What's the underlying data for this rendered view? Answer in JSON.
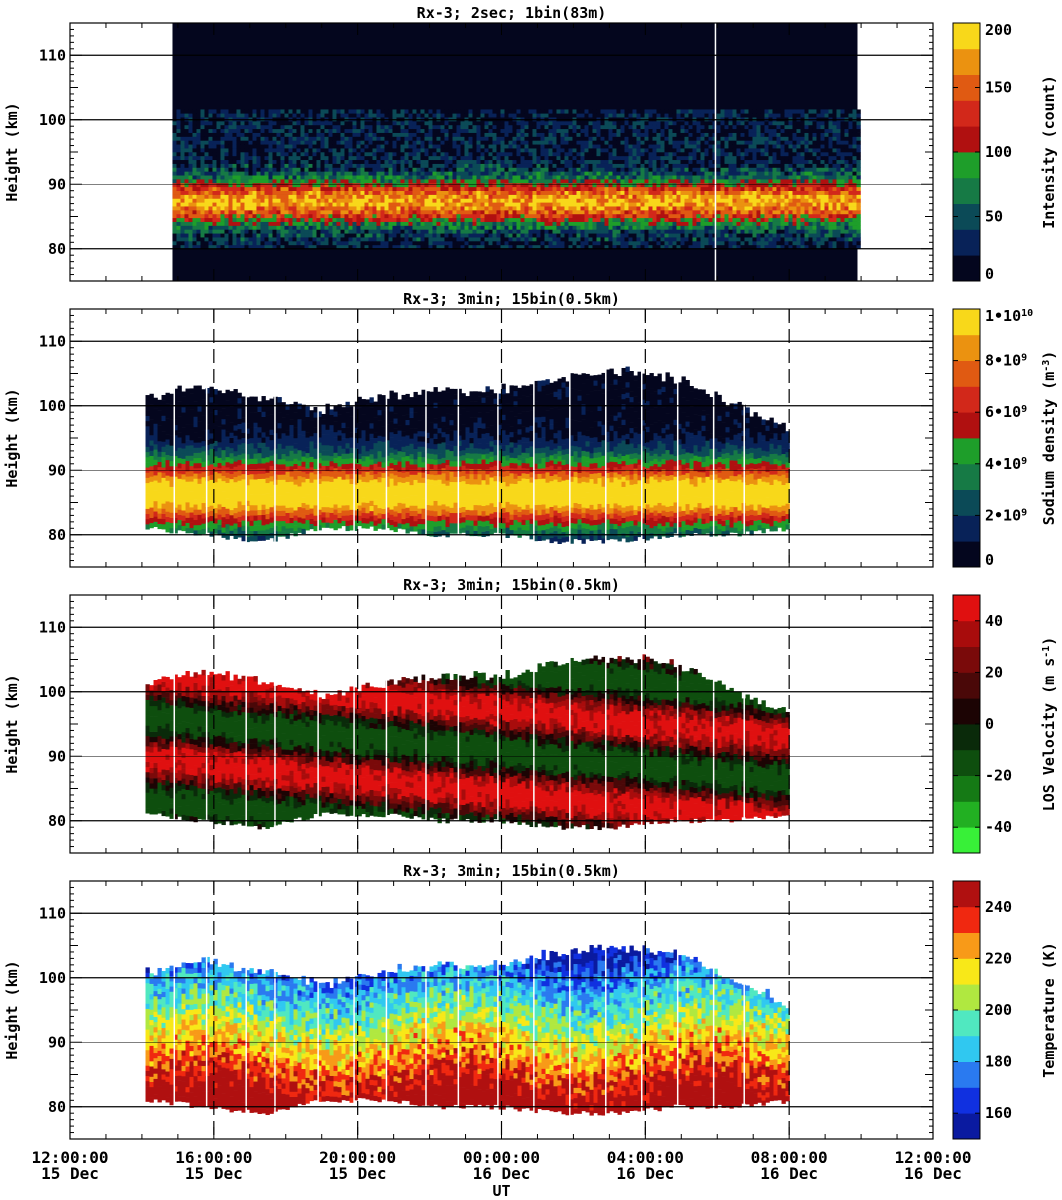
{
  "figure": {
    "xlabel": "UT",
    "ylabel": "Height (km)",
    "x_ticks": [
      {
        "time": "12:00:00",
        "day": "15 Dec"
      },
      {
        "time": "16:00:00",
        "day": "15 Dec"
      },
      {
        "time": "20:00:00",
        "day": "15 Dec"
      },
      {
        "time": "00:00:00",
        "day": "16 Dec"
      },
      {
        "time": "04:00:00",
        "day": "16 Dec"
      },
      {
        "time": "08:00:00",
        "day": "16 Dec"
      },
      {
        "time": "12:00:00",
        "day": "16 Dec"
      }
    ],
    "y_ticks": [
      "80",
      "90",
      "100",
      "110"
    ]
  },
  "chart_data": [
    {
      "type": "heatmap",
      "title": "Rx-3;  2sec; 1bin(83m)",
      "ylabel": "Height (km)",
      "xlim_hours_ut": [
        12,
        36
      ],
      "ylim": [
        75,
        115
      ],
      "colorbar_label": "Intensity (count)",
      "colorbar_ticks": [
        "0",
        "50",
        "100",
        "150",
        "200"
      ],
      "colorbar_range": [
        0,
        200
      ],
      "colors": [
        "#04061e",
        "#082258",
        "#0b4a57",
        "#167a45",
        "#1e9e2a",
        "#b01010",
        "#d2281a",
        "#e05a12",
        "#eb9210",
        "#f8d81a"
      ],
      "data_extent_hours_ut": [
        14.85,
        33.9
      ],
      "layer_peak_height_km": 87,
      "grid_verticals": false
    },
    {
      "type": "heatmap",
      "title": "Rx-3; 3min; 15bin(0.5km)",
      "ylabel": "Height (km)",
      "xlim_hours_ut": [
        12,
        36
      ],
      "ylim": [
        75,
        115
      ],
      "colorbar_label": "Sodium density (m-3)",
      "colorbar_ticks": [
        "0",
        "2•10^9",
        "4•10^9",
        "6•10^9",
        "8•10^9",
        "1•10^10"
      ],
      "colorbar_range": [
        0,
        10000000000.0
      ],
      "colors": [
        "#04061e",
        "#082258",
        "#0b4a57",
        "#167a45",
        "#1e9e2a",
        "#b01010",
        "#d2281a",
        "#e05a12",
        "#eb9210",
        "#f8d81a"
      ],
      "data_extent_hours_ut": [
        14.1,
        32.0
      ],
      "layer_peak_height_km": 86,
      "top_height_km": [
        101,
        103,
        101,
        99,
        101,
        102,
        102,
        104,
        105,
        104,
        100,
        96
      ],
      "bottom_height_km": [
        81,
        80,
        79,
        81,
        81,
        80,
        80,
        79,
        79,
        80,
        80,
        81
      ],
      "grid_verticals": true
    },
    {
      "type": "heatmap",
      "title": "Rx-3; 3min; 15bin(0.5km)",
      "ylabel": "Height (km)",
      "xlim_hours_ut": [
        12,
        36
      ],
      "ylim": [
        75,
        115
      ],
      "colorbar_label": "LOS Velocity (m s-1)",
      "colorbar_ticks": [
        "-40",
        "-20",
        "0",
        "20",
        "40"
      ],
      "colorbar_range": [
        -50,
        50
      ],
      "colors": [
        "#38f038",
        "#22b022",
        "#157a15",
        "#0e4e0e",
        "#0a2a0a",
        "#1c0404",
        "#4a0808",
        "#7a0a0a",
        "#a80c0c",
        "#e01010"
      ],
      "data_extent_hours_ut": [
        14.1,
        32.0
      ],
      "grid_verticals": true
    },
    {
      "type": "heatmap",
      "title": "Rx-3; 3min; 15bin(0.5km)",
      "ylabel": "Height (km)",
      "xlim_hours_ut": [
        12,
        36
      ],
      "ylim": [
        75,
        115
      ],
      "colorbar_label": "Temperature (K)",
      "colorbar_ticks": [
        "160",
        "180",
        "200",
        "220",
        "240"
      ],
      "colorbar_range": [
        150,
        250
      ],
      "colors": [
        "#0a1aa0",
        "#1030e0",
        "#2a7af0",
        "#30c8f0",
        "#50e8c0",
        "#b0e840",
        "#f8e818",
        "#f89a18",
        "#f02810",
        "#b01010"
      ],
      "data_extent_hours_ut": [
        14.1,
        32.0
      ],
      "grid_verticals": true
    }
  ]
}
